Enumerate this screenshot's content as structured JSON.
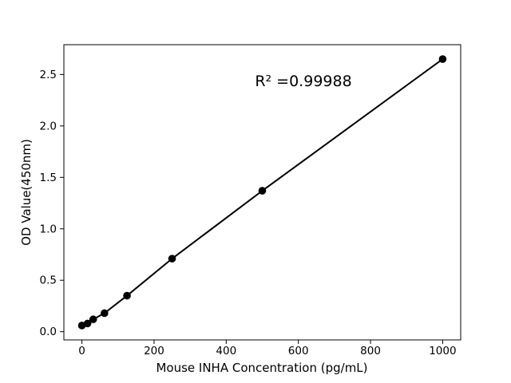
{
  "chart_data": {
    "type": "scatter",
    "mode": "markers+line",
    "title": "",
    "xlabel": "Mouse INHA Concentration (pg/mL)",
    "ylabel": "OD Value(450nm)",
    "annotation": {
      "text": "R² =0.99988"
    },
    "points": [
      {
        "x": 0,
        "y": 0.06
      },
      {
        "x": 15.625,
        "y": 0.08
      },
      {
        "x": 31.25,
        "y": 0.12
      },
      {
        "x": 62.5,
        "y": 0.18
      },
      {
        "x": 125,
        "y": 0.35
      },
      {
        "x": 250,
        "y": 0.71
      },
      {
        "x": 500,
        "y": 1.37
      },
      {
        "x": 1000,
        "y": 2.65
      }
    ],
    "xlim": [
      -50,
      1050
    ],
    "ylim": [
      -0.08,
      2.79
    ],
    "xticks": {
      "values": [
        0,
        200,
        400,
        600,
        800,
        1000
      ],
      "labels": [
        "0",
        "200",
        "400",
        "600",
        "800",
        "1000"
      ]
    },
    "yticks": {
      "values": [
        0.0,
        0.5,
        1.0,
        1.5,
        2.0,
        2.5
      ],
      "labels": [
        "0.0",
        "0.5",
        "1.0",
        "1.5",
        "2.0",
        "2.5"
      ]
    },
    "grid": false,
    "legend": "none",
    "colors": {
      "marker": "#000000",
      "line": "#000000",
      "axis": "#000000",
      "text": "#000000",
      "background": "#ffffff"
    }
  }
}
